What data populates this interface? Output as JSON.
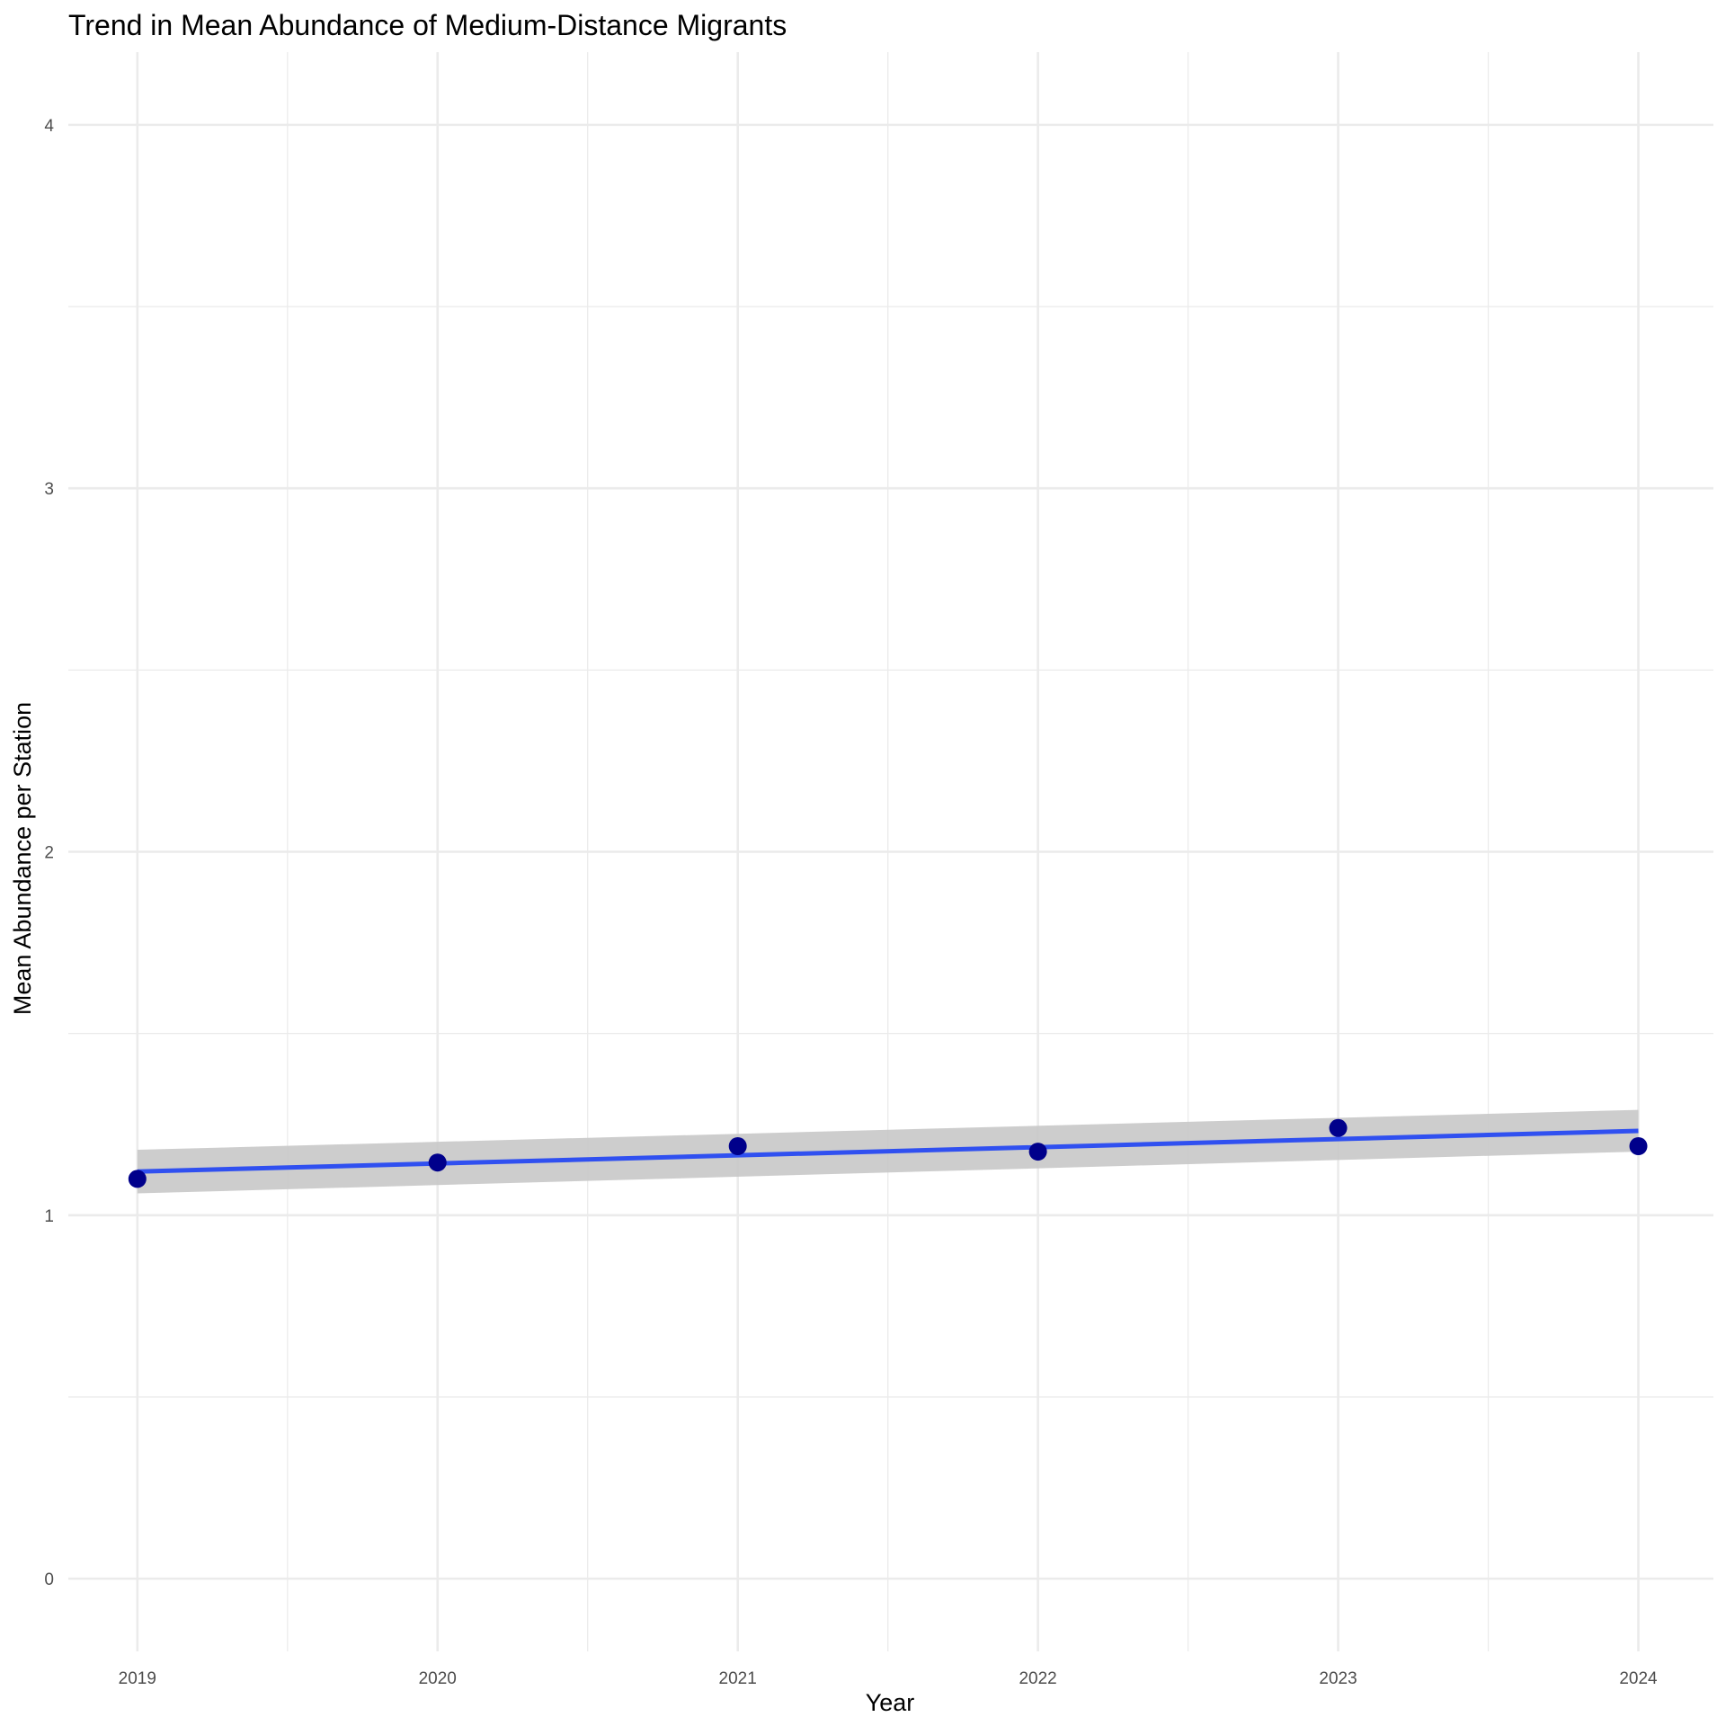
{
  "chart_data": {
    "type": "scatter",
    "title": "Trend in Mean Abundance of Medium-Distance Migrants",
    "xlabel": "Year",
    "ylabel": "Mean Abundance per Station",
    "x": [
      2019,
      2020,
      2021,
      2022,
      2023,
      2024
    ],
    "y": [
      1.1,
      1.145,
      1.19,
      1.175,
      1.24,
      1.19
    ],
    "x_ticks": [
      "2019",
      "2020",
      "2021",
      "2022",
      "2023",
      "2024"
    ],
    "y_ticks": [
      "0",
      "1",
      "2",
      "3",
      "4"
    ],
    "xlim": [
      2018.77,
      2024.25
    ],
    "ylim": [
      -0.2,
      4.2
    ],
    "trend_line": {
      "method": "linear fit",
      "x": [
        2019,
        2024
      ],
      "y": [
        1.12,
        1.232
      ],
      "ci_lower": [
        1.06,
        1.175
      ],
      "ci_upper": [
        1.18,
        1.29
      ]
    },
    "grid": true,
    "legend": "none",
    "colors": {
      "points": "#00008b",
      "trend_line": "#3050f0",
      "confidence_band": "#c8c8c8",
      "grid": "#ebebeb"
    }
  }
}
